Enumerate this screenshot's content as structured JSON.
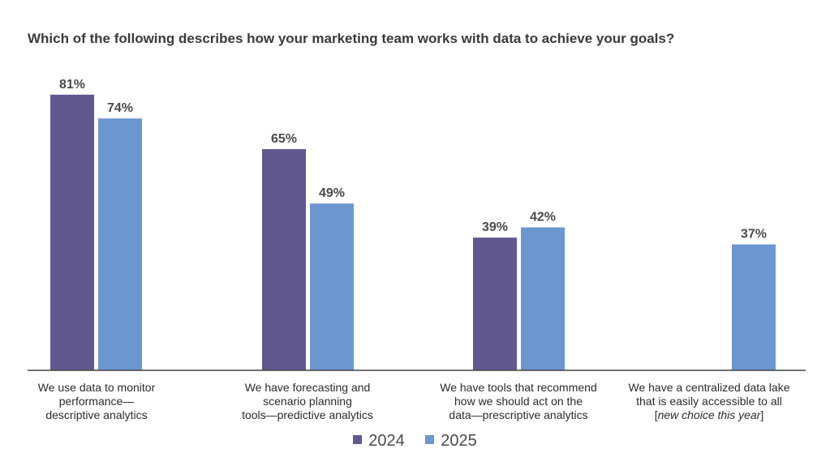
{
  "title": "Which of the following describes how your marketing team works with data to achieve your goals?",
  "colors": {
    "2024": "#625890",
    "2025": "#6b96d0",
    "axis": "#444444"
  },
  "chart_data": {
    "type": "bar",
    "title": "Which of the following describes how your marketing team works with data to achieve your goals?",
    "categories": [
      "We use data to monitor performance—descriptive analytics",
      "We have forecasting and scenario planning tools—predictive analytics",
      "We have tools that recommend how we should act on the data—prescriptive analytics",
      "We have a centralized data lake that is easily accessible to all [new choice this year]"
    ],
    "series": [
      {
        "name": "2024",
        "values": [
          81,
          65,
          39,
          null
        ],
        "labels": [
          "81%",
          "65%",
          "39%",
          ""
        ]
      },
      {
        "name": "2025",
        "values": [
          74,
          49,
          42,
          37
        ],
        "labels": [
          "74%",
          "49%",
          "42%",
          "37%"
        ]
      }
    ],
    "unit": "%",
    "ylim": [
      0,
      100
    ],
    "grid": false,
    "legend": "bottom"
  },
  "category_labels": [
    {
      "lines": [
        "We use data to monitor",
        "performance—",
        "descriptive analytics"
      ]
    },
    {
      "lines": [
        "We have forecasting and",
        "scenario planning",
        "tools—predictive analytics"
      ]
    },
    {
      "lines": [
        "We have tools that recommend",
        "how we should act on the",
        "data—prescriptive analytics"
      ]
    },
    {
      "lines": [
        "We have a centralized data lake",
        "that is easily accessible to all"
      ],
      "note": "new choice this year"
    }
  ],
  "legend": [
    {
      "label": "2024"
    },
    {
      "label": "2025"
    }
  ]
}
